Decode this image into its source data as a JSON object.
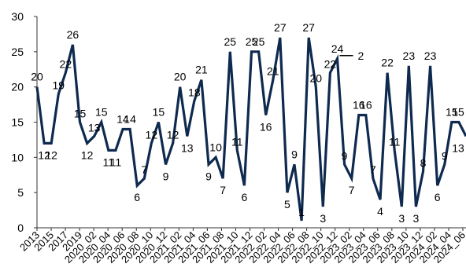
{
  "chart_data": {
    "type": "line",
    "title": "",
    "xlabel": "",
    "ylabel": "",
    "ylim": [
      0,
      30
    ],
    "y_ticks": [
      "0",
      "5",
      "10",
      "15",
      "20",
      "25",
      "30"
    ],
    "grid": false,
    "legend": "none",
    "colors": {
      "line": "#0f2a4f",
      "axis": "#333333",
      "text": "#000000"
    },
    "x_tick_labels": [
      "2013",
      "2015",
      "2017",
      "2019",
      "2020_02",
      "2020_04",
      "2020_06",
      "2020_08",
      "2020_10",
      "2020_12",
      "2021_02",
      "2021_04",
      "2021_06",
      "2021_08",
      "2021_10",
      "2021_12",
      "2022_02",
      "2022_04",
      "2022_06",
      "2022_08",
      "2022_10",
      "2022_12",
      "2023_02",
      "2023_04",
      "2023_06",
      "2023_08",
      "2023_10",
      "2023_12",
      "2024_02",
      "2024_04",
      "2024_06"
    ],
    "series": [
      {
        "values": [
          20,
          12,
          12,
          19,
          22,
          26,
          15,
          12,
          13,
          15,
          11,
          11,
          14,
          14,
          6,
          7,
          12,
          15,
          9,
          12,
          20,
          13,
          18,
          21,
          9,
          10,
          7,
          25,
          11,
          6,
          25,
          25,
          16,
          21,
          27,
          5,
          9,
          1,
          27,
          20,
          3,
          22,
          24,
          9,
          7,
          16,
          16,
          7,
          4,
          22,
          11,
          3,
          23,
          3,
          8,
          23,
          6,
          9,
          15,
          15,
          13
        ],
        "labels": [
          "20",
          "12",
          "12",
          "19",
          "22",
          "26",
          "15",
          "12",
          "13",
          "15",
          "11",
          "11",
          "14",
          "14",
          "6",
          "7",
          "12",
          "15",
          "9",
          "12",
          "20",
          "13",
          "18",
          "21",
          "9",
          "10",
          "7",
          "25",
          "11",
          "6",
          "25",
          "25",
          "16",
          "21",
          "27",
          "5",
          "9",
          "1",
          "27",
          "20",
          "3",
          "22",
          "24",
          "9",
          "7",
          "16",
          "16",
          "7",
          "4",
          "22",
          "11",
          "3",
          "23",
          "3",
          "8",
          "23",
          "6",
          "9",
          "15",
          "15",
          "13"
        ]
      }
    ],
    "annotations": [
      {
        "text": "2",
        "series_index": 42
      }
    ]
  }
}
